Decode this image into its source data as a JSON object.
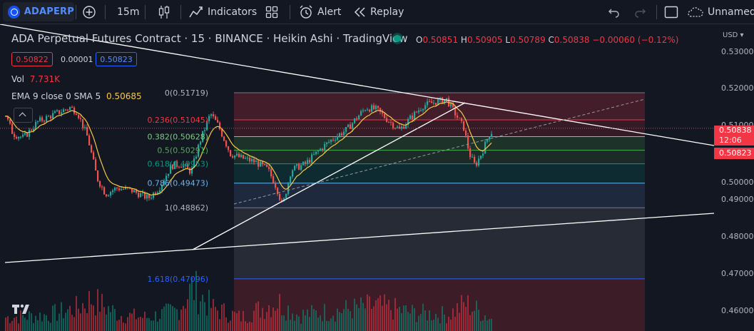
{
  "toolbar": {
    "symbol": "ADAPERP",
    "interval": "15m",
    "indicators_label": "Indicators",
    "alert_label": "Alert",
    "replay_label": "Replay",
    "layout_name": "Unnamed"
  },
  "legend": {
    "title": "ADA Perpetual Futures Contract · 15 · BINANCE · Heikin Ashi · TradingView",
    "ohlc": {
      "o_key": "O",
      "o": "0.50851",
      "h_key": "H",
      "h": "0.50905",
      "l_key": "L",
      "l": "0.50789",
      "c_key": "C",
      "c": "0.50838",
      "change": "−0.00060 (−0.12%)"
    },
    "bid": "0.50822",
    "spread": "0.00001",
    "ask": "0.50823",
    "vol_label": "Vol",
    "vol_value": "7.731K",
    "ema_label": "EMA 9 close 0 SMA 5",
    "ema_value": "0.50685"
  },
  "axis": {
    "currency": "USD",
    "ticks": [
      "0.53000",
      "0.52000",
      "0.51000",
      "0.50000",
      "0.49000",
      "0.48000",
      "0.47000",
      "0.46000"
    ],
    "last_price": "0.50838",
    "countdown": "12:06",
    "ask_price": "0.50823"
  },
  "chart_data": {
    "type": "candlestick",
    "chart_style": "Heikin Ashi",
    "ylim": [
      0.458,
      0.5342
    ],
    "y_ticks": [
      0.53,
      0.52,
      0.51,
      0.5,
      0.49,
      0.48,
      0.47,
      0.46
    ],
    "ema_period": 9,
    "last_price": 0.50838,
    "fib_levels": [
      {
        "label": "0(0.51719)",
        "ratio": 0,
        "price": 0.51719
      },
      {
        "label": "0.236(0.51045)",
        "ratio": 0.236,
        "price": 0.51045
      },
      {
        "label": "0.382(0.50628)",
        "ratio": 0.382,
        "price": 0.50628
      },
      {
        "label": "0.5(0.50291)",
        "ratio": 0.5,
        "price": 0.50291
      },
      {
        "label": "0.618(0.49953)",
        "ratio": 0.618,
        "price": 0.49953
      },
      {
        "label": "0.786(0.49473)",
        "ratio": 0.786,
        "price": 0.49473
      },
      {
        "label": "1(0.48862)",
        "ratio": 1,
        "price": 0.48862
      },
      {
        "label": "1.618(0.47096)",
        "ratio": 1.618,
        "price": 0.47096
      }
    ],
    "price_path": [
      [
        0,
        0.5115
      ],
      [
        10,
        0.507
      ],
      [
        25,
        0.506
      ],
      [
        45,
        0.51
      ],
      [
        70,
        0.512
      ],
      [
        90,
        0.5135
      ],
      [
        100,
        0.5125
      ],
      [
        115,
        0.506
      ],
      [
        128,
        0.496
      ],
      [
        140,
        0.492
      ],
      [
        155,
        0.4935
      ],
      [
        175,
        0.493
      ],
      [
        200,
        0.491
      ],
      [
        215,
        0.4935
      ],
      [
        232,
        0.499
      ],
      [
        245,
        0.4995
      ],
      [
        260,
        0.4975
      ],
      [
        272,
        0.505
      ],
      [
        287,
        0.512
      ],
      [
        298,
        0.509
      ],
      [
        315,
        0.502
      ],
      [
        330,
        0.501
      ],
      [
        350,
        0.5
      ],
      [
        368,
        0.498
      ],
      [
        380,
        0.4935
      ],
      [
        388,
        0.489
      ],
      [
        400,
        0.498
      ],
      [
        420,
        0.4995
      ],
      [
        440,
        0.503
      ],
      [
        460,
        0.506
      ],
      [
        478,
        0.508
      ],
      [
        492,
        0.511
      ],
      [
        505,
        0.5135
      ],
      [
        520,
        0.513
      ],
      [
        535,
        0.5105
      ],
      [
        552,
        0.508
      ],
      [
        568,
        0.511
      ],
      [
        585,
        0.514
      ],
      [
        605,
        0.515
      ],
      [
        618,
        0.5155
      ],
      [
        630,
        0.512
      ],
      [
        642,
        0.5085
      ],
      [
        650,
        0.502
      ],
      [
        658,
        0.499
      ],
      [
        668,
        0.5025
      ],
      [
        678,
        0.507
      ],
      [
        688,
        0.5084
      ]
    ],
    "volume_profile": [
      [
        0,
        0.3
      ],
      [
        60,
        0.35
      ],
      [
        100,
        0.5
      ],
      [
        120,
        0.7
      ],
      [
        160,
        0.35
      ],
      [
        200,
        0.3
      ],
      [
        240,
        0.45
      ],
      [
        262,
        0.95
      ],
      [
        290,
        0.5
      ],
      [
        330,
        0.3
      ],
      [
        380,
        0.65
      ],
      [
        410,
        0.35
      ],
      [
        470,
        0.45
      ],
      [
        520,
        0.55
      ],
      [
        570,
        0.4
      ],
      [
        620,
        0.35
      ],
      [
        645,
        0.6
      ],
      [
        688,
        0.2
      ]
    ]
  }
}
